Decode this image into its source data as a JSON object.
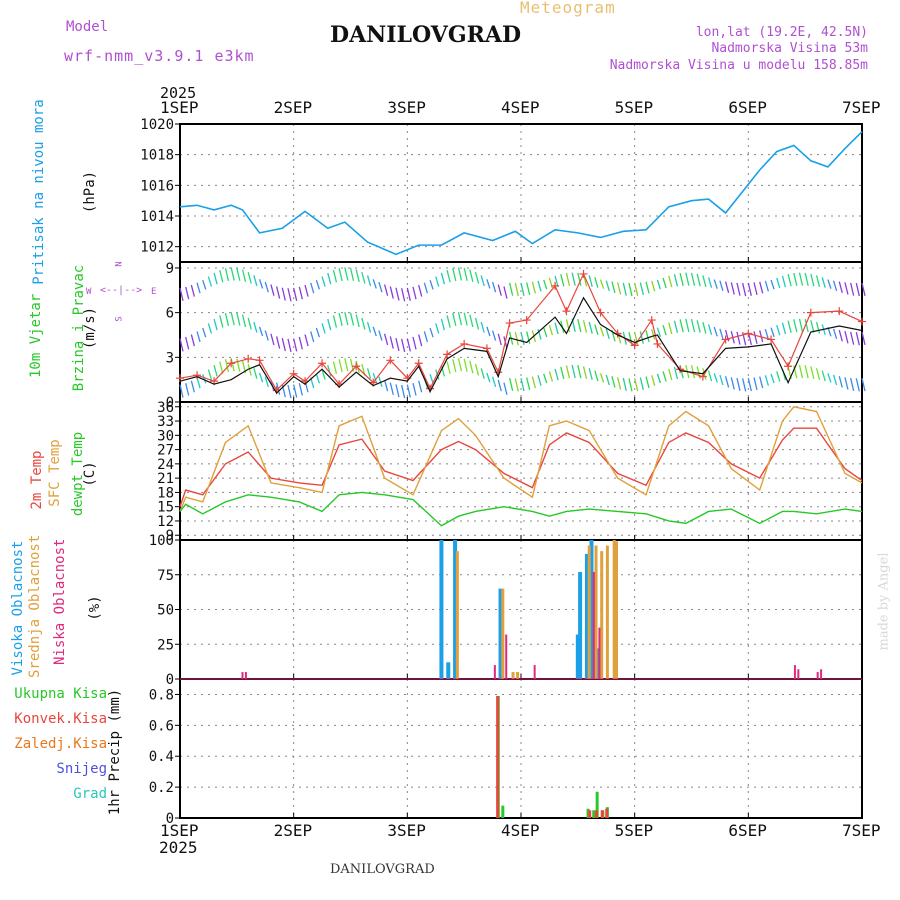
{
  "header": {
    "model_label": "Model",
    "model_name": "wrf-nmm_v3.9.1 e3km",
    "title": "DANILOVGRAD",
    "subtitle": "Meteogram",
    "lonlat": "lon,lat (19.2E, 42.5N)",
    "elevation": "Nadmorska Visina 53m",
    "model_elevation": "Nadmorska Visina u modelu 158.85m"
  },
  "footer": {
    "station": "DANILOVGRAD",
    "credit": "made by Angel"
  },
  "axis": {
    "year_top": "2025",
    "year_bottom": "2025",
    "days": [
      "1SEP",
      "2SEP",
      "3SEP",
      "4SEP",
      "5SEP",
      "6SEP",
      "7SEP"
    ]
  },
  "compass": {
    "n": "N",
    "s": "S",
    "w": "W",
    "e": "E"
  },
  "panels": {
    "pressure": {
      "label": "Pritisak na nivou mora",
      "unit": "(hPa)"
    },
    "wind": {
      "label1": "10m Vjetar",
      "label2": "Brzina i Pravac",
      "unit": "(m/s)"
    },
    "temp": {
      "label1": "2m Temp",
      "label2": "SFC Temp",
      "label3": "dewpt Temp",
      "unit": "(C)"
    },
    "cloud": {
      "label1": "Visoka Oblacnost",
      "label2": "Srednja Oblacnost",
      "label3": "Niska Oblacnost",
      "unit": "(%)"
    },
    "precip": {
      "label1": "Ukupna Kisa",
      "label2": "Konvek.Kisa",
      "label3": "Zaledj.Kisa",
      "label4": "Snijeg",
      "label5": "Grad",
      "unit": "1hr Precip (mm)"
    }
  },
  "colors": {
    "pressure": "#1aa0e8",
    "temp2m": "#e8463c",
    "sfc": "#e0a03c",
    "dew": "#28c828",
    "high": "#1aa0e8",
    "mid": "#e0a03c",
    "low": "#e0287c",
    "total": "#28c828",
    "conv": "#e8463c",
    "frz": "#e8781e",
    "snow": "#5050e0",
    "hail": "#28c8b4",
    "purple": "#b050d0",
    "gold": "#e8c070",
    "grid": "#888888"
  },
  "chart_data": [
    {
      "type": "line",
      "title": "Pritisak na nivou mora",
      "ylabel": "(hPa)",
      "ylim": [
        1011,
        1020
      ],
      "yticks": [
        "1020",
        "1018",
        "1016",
        "1014",
        "1012"
      ],
      "x_days": [
        0.0,
        0.15,
        0.3,
        0.45,
        0.55,
        0.7,
        0.9,
        1.1,
        1.3,
        1.45,
        1.65,
        1.9,
        2.1,
        2.3,
        2.5,
        2.75,
        2.95,
        3.1,
        3.3,
        3.5,
        3.7,
        3.9,
        4.1,
        4.3,
        4.5,
        4.65,
        4.8,
        4.95,
        5.1,
        5.25,
        5.4,
        5.55,
        5.7,
        5.85,
        6.0
      ],
      "values": [
        1014.6,
        1014.7,
        1014.4,
        1014.7,
        1014.4,
        1012.9,
        1013.2,
        1014.3,
        1013.2,
        1013.6,
        1012.3,
        1011.5,
        1012.1,
        1012.1,
        1012.9,
        1012.4,
        1013.0,
        1012.2,
        1013.1,
        1012.9,
        1012.6,
        1013.0,
        1013.1,
        1014.6,
        1015.0,
        1015.1,
        1014.2,
        1015.6,
        1017.0,
        1018.2,
        1018.6,
        1017.6,
        1017.2,
        1018.4,
        1019.5
      ]
    },
    {
      "type": "line",
      "title": "10m Vjetar Brzina i Pravac",
      "ylabel": "(m/s)",
      "ylim": [
        0,
        9.4
      ],
      "yticks": [
        "9",
        "6",
        "3",
        "0"
      ],
      "series": [
        {
          "name": "speed",
          "values": [
            1.4,
            1.7,
            1.2,
            1.5,
            2.2,
            2.5,
            0.6,
            1.7,
            1.2,
            2.2,
            1.0,
            2.0,
            1.1,
            1.6,
            1.4,
            2.4,
            0.7,
            2.9,
            3.6,
            3.4,
            1.7,
            4.3,
            4.0,
            5.7,
            4.6,
            7.0,
            5.2,
            4.5,
            4.0,
            4.4,
            4.5,
            2.1,
            1.9,
            3.6,
            3.7,
            3.9,
            1.3,
            4.7,
            5.1,
            4.8
          ]
        },
        {
          "name": "gust",
          "values": [
            1.6,
            1.8,
            1.4,
            2.6,
            2.9,
            2.8,
            0.8,
            1.9,
            1.4,
            2.6,
            1.2,
            2.4,
            1.3,
            2.8,
            1.6,
            2.6,
            0.9,
            3.2,
            3.9,
            3.6,
            2.0,
            5.3,
            5.5,
            7.8,
            6.1,
            8.6,
            6.0,
            4.6,
            3.8,
            5.5,
            3.9,
            2.2,
            1.7,
            4.2,
            4.6,
            4.2,
            2.4,
            6.0,
            6.1,
            5.4
          ]
        }
      ],
      "x_days": [
        0.0,
        0.15,
        0.3,
        0.45,
        0.6,
        0.7,
        0.85,
        1.0,
        1.1,
        1.25,
        1.4,
        1.55,
        1.7,
        1.85,
        2.0,
        2.1,
        2.2,
        2.35,
        2.5,
        2.7,
        2.8,
        2.9,
        3.05,
        3.3,
        3.4,
        3.55,
        3.7,
        3.85,
        4.0,
        4.15,
        4.2,
        4.4,
        4.6,
        4.8,
        5.0,
        5.2,
        5.35,
        5.55,
        5.8,
        6.0
      ]
    },
    {
      "type": "line",
      "title": "Temperatura",
      "ylabel": "(C)",
      "ylim": [
        8,
        37
      ],
      "yticks": [
        "36",
        "33",
        "30",
        "27",
        "24",
        "21",
        "18",
        "15",
        "12",
        "9"
      ],
      "x_days": [
        0.0,
        0.05,
        0.2,
        0.4,
        0.6,
        0.8,
        1.05,
        1.25,
        1.4,
        1.6,
        1.8,
        2.05,
        2.3,
        2.45,
        2.6,
        2.85,
        3.1,
        3.25,
        3.4,
        3.6,
        3.85,
        4.1,
        4.3,
        4.45,
        4.65,
        4.85,
        5.1,
        5.3,
        5.4,
        5.6,
        5.85,
        6.0
      ],
      "series": [
        {
          "name": "2m Temp",
          "values": [
            15,
            18.5,
            17.5,
            24,
            26.5,
            21,
            20,
            19.5,
            28,
            29.2,
            22.5,
            20.5,
            27,
            28.7,
            27,
            22,
            19,
            28,
            30.5,
            28.5,
            22,
            19.5,
            28.5,
            30.5,
            28.5,
            24,
            21,
            29,
            31.5,
            31.5,
            23,
            20.5
          ]
        },
        {
          "name": "SFC Temp",
          "values": [
            14,
            17,
            16,
            28.5,
            32,
            20,
            19,
            18,
            32,
            34,
            21,
            17.5,
            31,
            33.5,
            30,
            21,
            17,
            32,
            33,
            31,
            21,
            17.5,
            32,
            35,
            32,
            23,
            18.5,
            33,
            36,
            35,
            22,
            20
          ]
        },
        {
          "name": "dewpt Temp",
          "values": [
            14,
            15.5,
            13.5,
            16,
            17.5,
            17,
            16,
            14,
            17.5,
            18,
            17.5,
            16.5,
            11,
            13,
            14,
            15,
            14,
            13,
            14,
            14.5,
            14,
            13.5,
            12,
            11.5,
            14,
            14.5,
            11.5,
            14,
            14,
            13.5,
            14.5,
            14
          ]
        }
      ]
    },
    {
      "type": "bar",
      "title": "Oblacnost",
      "ylabel": "(%)",
      "ylim": [
        0,
        100
      ],
      "yticks": [
        "100",
        "75",
        "50",
        "25",
        "0"
      ],
      "series": [
        {
          "name": "Visoka Oblacnost",
          "x_days": [
            2.3,
            2.36,
            2.42,
            2.82,
            3.5,
            3.52,
            3.58,
            3.62,
            3.65,
            3.68
          ],
          "values": [
            100,
            12,
            100,
            65,
            32,
            77,
            90,
            100,
            57,
            22
          ]
        },
        {
          "name": "Srednja Oblacnost",
          "x_days": [
            2.44,
            2.84,
            2.93,
            2.97,
            3.6,
            3.66,
            3.71,
            3.76,
            3.82,
            3.84
          ],
          "values": [
            92,
            65,
            5,
            5,
            96,
            96,
            92,
            96,
            100,
            99
          ]
        },
        {
          "name": "Niska Oblacnost",
          "x_days": [
            0.55,
            0.58,
            2.77,
            2.87,
            3.12,
            3.64,
            3.69,
            5.41,
            5.44,
            5.61,
            5.64
          ],
          "values": [
            5,
            5,
            10,
            32,
            10,
            77,
            37,
            10,
            7,
            5,
            7
          ]
        }
      ]
    },
    {
      "type": "bar",
      "title": "1hr Precip",
      "ylabel": "1hr Precip (mm)",
      "ylim": [
        0,
        0.9
      ],
      "yticks": [
        "0.8",
        "0.6",
        "0.4",
        "0.2",
        "0"
      ],
      "series": [
        {
          "name": "Ukupna Kisa",
          "x_days": [
            2.8,
            2.84,
            3.59,
            3.64,
            3.67,
            3.72,
            3.76
          ],
          "values": [
            0.79,
            0.08,
            0.06,
            0.05,
            0.17,
            0.05,
            0.07
          ]
        },
        {
          "name": "Konvek.Kisa",
          "x_days": [
            2.79,
            3.6,
            3.66,
            3.71,
            3.75
          ],
          "values": [
            0.79,
            0.05,
            0.05,
            0.05,
            0.06
          ]
        }
      ]
    }
  ]
}
